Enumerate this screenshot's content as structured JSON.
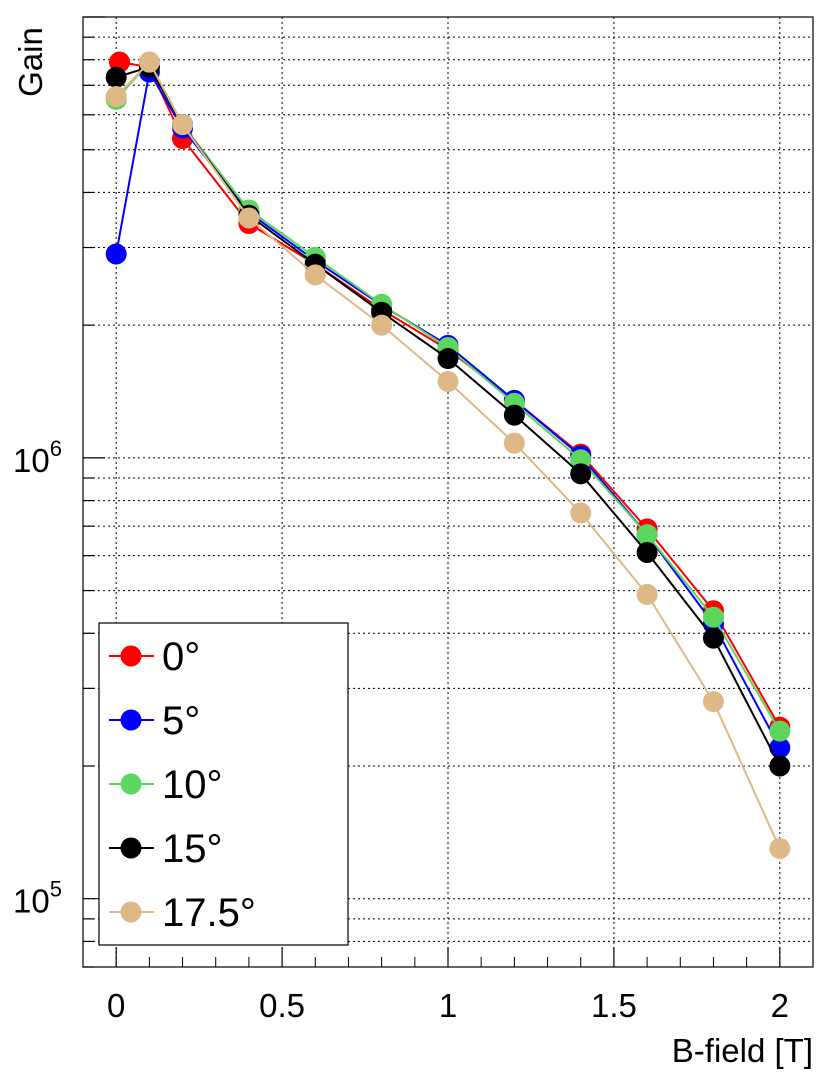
{
  "chart_data": {
    "type": "line",
    "xlabel": "B-field [T]",
    "ylabel": "Gain",
    "xlim": [
      -0.1,
      2.1
    ],
    "ylim": [
      70000,
      10000000
    ],
    "yscale": "log",
    "grid": true,
    "x_ticks": [
      "0",
      "0.5",
      "1",
      "1.5",
      "2"
    ],
    "y_ticks": [
      {
        "base": "10",
        "exp": "6"
      },
      {
        "base": "10",
        "exp": "5"
      }
    ],
    "legend_position": "bottom-left",
    "series": [
      {
        "name": "0°",
        "color": "#ff0000",
        "x": [
          0.01,
          0.1,
          0.2,
          0.4,
          0.6,
          0.8,
          1.0,
          1.2,
          1.4,
          1.6,
          1.8,
          2.0
        ],
        "y": [
          7900000,
          7700000,
          5300000,
          3400000,
          2750000,
          2170000,
          1760000,
          1350000,
          1020000,
          690000,
          450000,
          245000
        ]
      },
      {
        "name": "5°",
        "color": "#0000ff",
        "x": [
          0.0,
          0.1,
          0.2,
          0.4,
          0.6,
          0.8,
          1.0,
          1.2,
          1.4,
          1.6,
          1.8,
          2.0
        ],
        "y": [
          2900000,
          7500000,
          5600000,
          3600000,
          2800000,
          2220000,
          1800000,
          1350000,
          1010000,
          670000,
          420000,
          220000
        ]
      },
      {
        "name": "10°",
        "color": "#5cd65c",
        "x": [
          0.0,
          0.1,
          0.2,
          0.4,
          0.6,
          0.8,
          1.0,
          1.2,
          1.4,
          1.6,
          1.8,
          2.0
        ],
        "y": [
          6500000,
          7900000,
          5700000,
          3650000,
          2850000,
          2230000,
          1780000,
          1330000,
          990000,
          670000,
          435000,
          240000
        ]
      },
      {
        "name": "15°",
        "color": "#000000",
        "x": [
          0.0,
          0.1,
          0.2,
          0.4,
          0.6,
          0.8,
          1.0,
          1.2,
          1.4,
          1.6,
          1.8,
          2.0
        ],
        "y": [
          7300000,
          7700000,
          5700000,
          3550000,
          2750000,
          2140000,
          1680000,
          1250000,
          920000,
          610000,
          390000,
          200000
        ]
      },
      {
        "name": "17.5°",
        "color": "#deb887",
        "x": [
          0.0,
          0.1,
          0.2,
          0.4,
          0.6,
          0.8,
          1.0,
          1.2,
          1.4,
          1.6,
          1.8,
          2.0
        ],
        "y": [
          6600000,
          7900000,
          5700000,
          3500000,
          2600000,
          2000000,
          1490000,
          1080000,
          750000,
          490000,
          280000,
          130000
        ]
      }
    ]
  }
}
